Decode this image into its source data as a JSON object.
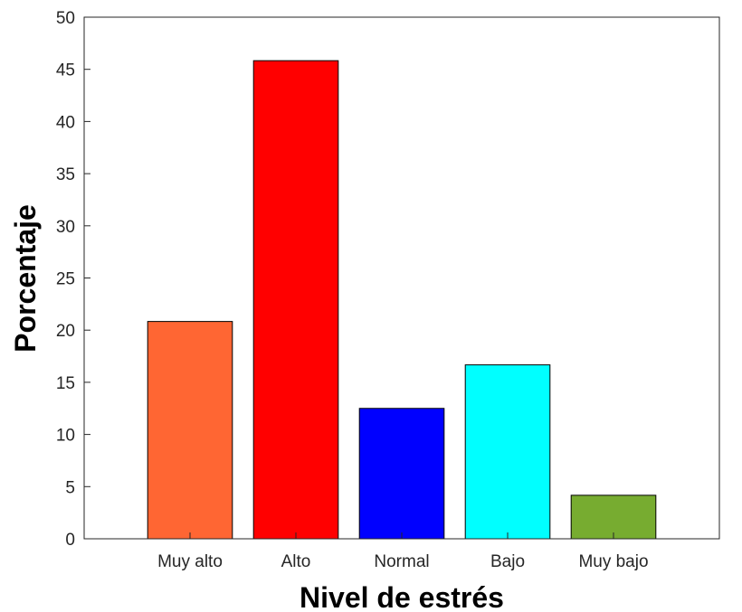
{
  "chart_data": {
    "type": "bar",
    "title": "",
    "xlabel": "Nivel de estrés",
    "ylabel": "Porcentaje",
    "categories": [
      "Muy alto",
      "Alto",
      "Normal",
      "Bajo",
      "Muy bajo"
    ],
    "values": [
      20.83,
      45.83,
      12.5,
      16.67,
      4.17
    ],
    "colors": [
      "#ff6633",
      "#ff0000",
      "#0000ff",
      "#00ffff",
      "#77ac30"
    ],
    "ylim": [
      0,
      50
    ],
    "yticks": [
      "0",
      "5",
      "10",
      "15",
      "20",
      "25",
      "30",
      "35",
      "40",
      "45",
      "50"
    ],
    "xlim": [
      0,
      6
    ],
    "grid": false,
    "legend": "none"
  }
}
